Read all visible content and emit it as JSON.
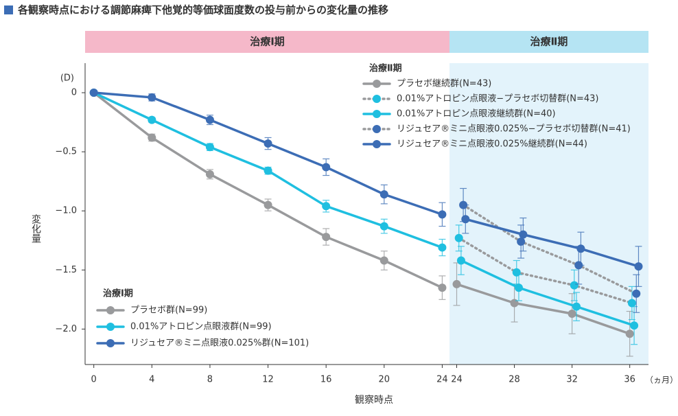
{
  "title": "各観察時点における調節麻痺下他覚的等価球面度数の投与前からの変化量の推移",
  "chart_data": {
    "type": "line",
    "y_unit": "(D)",
    "x_unit": "（ヵ月）",
    "xlabel": "観察時点",
    "ylabel": "変化量",
    "ylim": [
      -2.3,
      0.25
    ],
    "yticks": [
      0,
      {
        "value": -0.5,
        "label": "−0.5"
      },
      {
        "value": -1.0,
        "label": "−1.0"
      },
      {
        "value": -1.5,
        "label": "−1.5"
      },
      {
        "value": -2.0,
        "label": "−2.0"
      }
    ],
    "panels": [
      {
        "phase": "治療Ⅰ期",
        "phase_color": "#f5b8c9",
        "shade": null,
        "legend_title": "治療Ⅰ期",
        "x": [
          0,
          4,
          8,
          12,
          16,
          20,
          24
        ],
        "xlim": [
          -0.6,
          24.5
        ],
        "xticks": [
          0,
          4,
          8,
          12,
          16,
          20,
          24
        ],
        "series": [
          {
            "name": "プラセボ群(N=99)",
            "color": "#999a9c",
            "line_color": "#999a9c",
            "dashed": false,
            "values": [
              0,
              -0.38,
              -0.69,
              -0.95,
              -1.22,
              -1.42,
              -1.65
            ],
            "errors": [
              0,
              0.03,
              0.04,
              0.05,
              0.07,
              0.08,
              0.1
            ]
          },
          {
            "name": "0.01%アトロピン点眼液群(N=99)",
            "color": "#1fbfe0",
            "line_color": "#1fbfe0",
            "dashed": false,
            "values": [
              0,
              -0.23,
              -0.46,
              -0.66,
              -0.96,
              -1.13,
              -1.31
            ],
            "errors": [
              0,
              0.02,
              0.03,
              0.03,
              0.05,
              0.06,
              0.07
            ]
          },
          {
            "name": "リジュセア®ミニ点眼液0.025%群(N=101)",
            "color": "#3c6db5",
            "line_color": "#3c6db5",
            "dashed": false,
            "values": [
              0,
              -0.04,
              -0.23,
              -0.43,
              -0.63,
              -0.86,
              -1.03
            ],
            "errors": [
              0,
              0.03,
              0.04,
              0.05,
              0.07,
              0.08,
              0.1
            ]
          }
        ]
      },
      {
        "phase": "治療Ⅱ期",
        "phase_color": "#b5e4f3",
        "shade": "#e3f3fb",
        "legend_title": "治療Ⅱ期",
        "x": [
          24,
          28,
          32,
          36
        ],
        "xlim": [
          23.5,
          37.3
        ],
        "xticks": [
          24,
          28,
          32,
          36
        ],
        "series": [
          {
            "name": "プラセボ継続群(N=43)",
            "color": "#999a9c",
            "line_color": "#999a9c",
            "dashed": false,
            "values": [
              -1.62,
              -1.78,
              -1.87,
              -2.04
            ],
            "errors": [
              0.18,
              0.16,
              0.17,
              0.19
            ]
          },
          {
            "name": "0.01%アトロピン点眼液−プラセボ切替群(N=43)",
            "color": "#1fbfe0",
            "line_color": "#999a9c",
            "dashed": true,
            "values": [
              -1.23,
              -1.52,
              -1.63,
              -1.78
            ],
            "errors": [
              0.11,
              0.1,
              0.13,
              0.14
            ]
          },
          {
            "name": "0.01%アトロピン点眼液継続群(N=40)",
            "color": "#1fbfe0",
            "line_color": "#1fbfe0",
            "dashed": false,
            "values": [
              -1.42,
              -1.65,
              -1.81,
              -1.97
            ],
            "errors": [
              0.12,
              0.11,
              0.12,
              0.16
            ]
          },
          {
            "name": "リジュセア®ミニ点眼液0.025%−プラセボ切替群(N=41)",
            "color": "#3c6db5",
            "line_color": "#999a9c",
            "dashed": true,
            "values": [
              -0.95,
              -1.26,
              -1.46,
              -1.7
            ],
            "errors": [
              0.14,
              0.14,
              0.16,
              0.16
            ]
          },
          {
            "name": "リジュセア®ミニ点眼液0.025%継続群(N=44)",
            "color": "#3c6db5",
            "line_color": "#3c6db5",
            "dashed": false,
            "values": [
              -1.07,
              -1.2,
              -1.32,
              -1.47
            ],
            "errors": [
              0.12,
              0.14,
              0.14,
              0.17
            ]
          }
        ]
      }
    ]
  }
}
